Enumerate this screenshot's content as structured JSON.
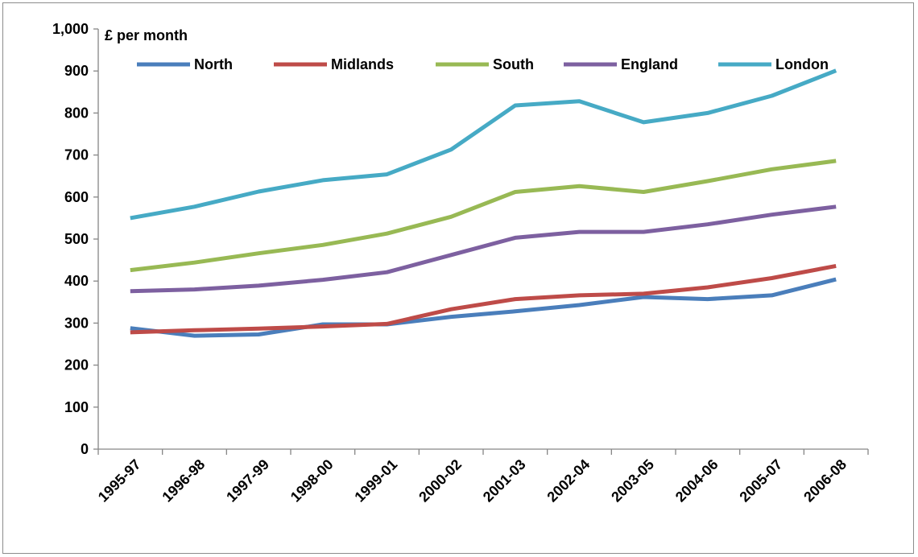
{
  "chart_data": {
    "type": "line",
    "ylabel": "£ per month",
    "ylim": [
      0,
      1000
    ],
    "yticks": [
      0,
      100,
      200,
      300,
      400,
      500,
      600,
      700,
      800,
      900,
      1000
    ],
    "ytick_labels": [
      "0",
      "100",
      "200",
      "300",
      "400",
      "500",
      "600",
      "700",
      "800",
      "900",
      "1,000"
    ],
    "categories": [
      "1995-97",
      "1996-98",
      "1997-99",
      "1998-00",
      "1999-01",
      "2000-02",
      "2001-03",
      "2002-04",
      "2003-05",
      "2004-06",
      "2005-07",
      "2006-08"
    ],
    "grid": false,
    "legend_position": "top",
    "series": [
      {
        "name": "North",
        "color": "#4a7ebb",
        "values": [
          288,
          270,
          273,
          297,
          297,
          315,
          328,
          343,
          362,
          357,
          366,
          404
        ]
      },
      {
        "name": "Midlands",
        "color": "#be4b48",
        "values": [
          278,
          283,
          287,
          292,
          298,
          333,
          357,
          366,
          370,
          385,
          407,
          436
        ]
      },
      {
        "name": "South",
        "color": "#98b954",
        "values": [
          426,
          444,
          466,
          486,
          513,
          553,
          612,
          626,
          612,
          638,
          666,
          686
        ]
      },
      {
        "name": "England",
        "color": "#7d60a0",
        "values": [
          376,
          380,
          389,
          403,
          421,
          462,
          503,
          517,
          517,
          535,
          558,
          577
        ]
      },
      {
        "name": "London",
        "color": "#46aac5",
        "values": [
          550,
          577,
          613,
          640,
          654,
          713,
          818,
          828,
          778,
          800,
          841,
          901
        ]
      }
    ]
  }
}
